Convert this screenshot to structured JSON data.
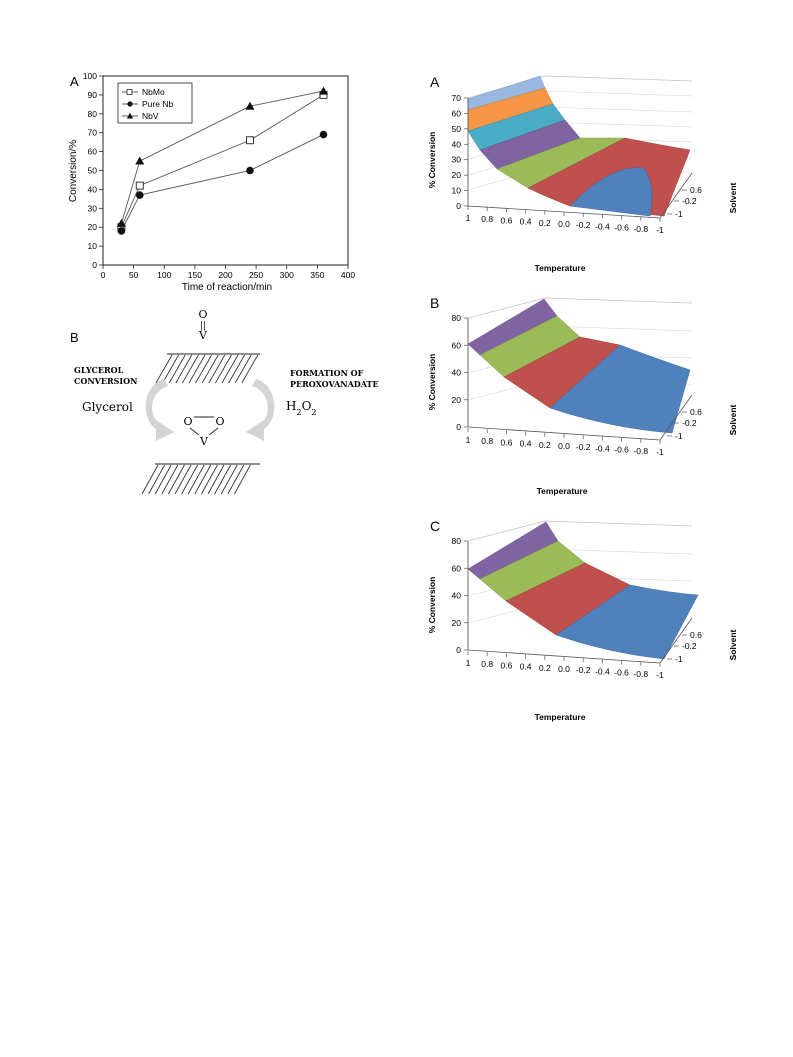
{
  "line_chart": {
    "panel_label": "A",
    "xlabel": "Time of reaction/min",
    "ylabel": "Conversion/%",
    "xticks": [
      "0",
      "50",
      "100",
      "150",
      "200",
      "250",
      "300",
      "350",
      "400"
    ],
    "yticks": [
      "0",
      "10",
      "20",
      "30",
      "40",
      "50",
      "60",
      "70",
      "80",
      "90",
      "100"
    ],
    "legend": [
      "NbMo",
      "Pure Nb",
      "NbV"
    ]
  },
  "scheme": {
    "panel_label": "B",
    "left_caption": [
      "GLYCEROL",
      "CONVERSION"
    ],
    "right_caption": [
      "FORMATION OF",
      "PEROXOVANADATE"
    ],
    "left_species": "Glycerol",
    "right_species": "H2O2",
    "top_atom_o": "O",
    "top_bond": "||",
    "top_atom_v": "V",
    "peroxo_o_left": "O",
    "peroxo_o_right": "O",
    "peroxo_v": "V"
  },
  "surfaces": [
    {
      "panel_label": "A",
      "zlabel": "% Conversion",
      "xlabel": "Temperature",
      "ylabel": "Solvent",
      "zticks": [
        "0",
        "10",
        "20",
        "30",
        "40",
        "50",
        "60",
        "70"
      ],
      "xticks": [
        "1",
        "0.8",
        "0.6",
        "0.4",
        "0.2",
        "0.0",
        "-0.2",
        "-0.4",
        "-0.6",
        "-0.8",
        "-1"
      ],
      "yticks": [
        "0.6",
        "-0.2",
        "-1"
      ]
    },
    {
      "panel_label": "B",
      "zlabel": "% Conversion",
      "xlabel": "Temperature",
      "ylabel": "Solvent",
      "zticks": [
        "0",
        "20",
        "40",
        "60",
        "80"
      ],
      "xticks": [
        "1",
        "0.8",
        "0.6",
        "0.4",
        "0.2",
        "0.0",
        "-0.2",
        "-0.4",
        "-0.6",
        "-0.8",
        "-1"
      ],
      "yticks": [
        "0.6",
        "-0.2",
        "-1"
      ]
    },
    {
      "panel_label": "C",
      "zlabel": "% Conversion",
      "xlabel": "Temperature",
      "ylabel": "Solvent",
      "zticks": [
        "0",
        "20",
        "40",
        "60",
        "80"
      ],
      "xticks": [
        "1",
        "0.8",
        "0.6",
        "0.4",
        "0.2",
        "0.0",
        "-0.2",
        "-0.4",
        "-0.6",
        "-0.8",
        "-1"
      ],
      "yticks": [
        "0.6",
        "-0.2",
        "-1"
      ]
    }
  ],
  "colors": {
    "blue": "#4f81bd",
    "red": "#c0504d",
    "green": "#9bbb59",
    "purple": "#8064a2",
    "teal": "#4bacc6",
    "orange": "#f79646",
    "lightblue": "#9ab7e0"
  },
  "chart_data": [
    {
      "type": "line",
      "xlabel": "Time of reaction/min",
      "ylabel": "Conversion/%",
      "xlim": [
        0,
        400
      ],
      "ylim": [
        0,
        100
      ],
      "grid": false,
      "legend_position": "top-left",
      "series": [
        {
          "name": "NbMo",
          "marker": "open-square",
          "x": [
            30,
            60,
            240,
            360
          ],
          "y": [
            20,
            42,
            66,
            90
          ]
        },
        {
          "name": "Pure Nb",
          "marker": "filled-circle",
          "x": [
            30,
            60,
            240,
            360
          ],
          "y": [
            18,
            37,
            50,
            69
          ]
        },
        {
          "name": "NbV",
          "marker": "filled-triangle",
          "x": [
            30,
            60,
            240,
            360
          ],
          "y": [
            22,
            55,
            84,
            92
          ]
        }
      ]
    }
  ]
}
